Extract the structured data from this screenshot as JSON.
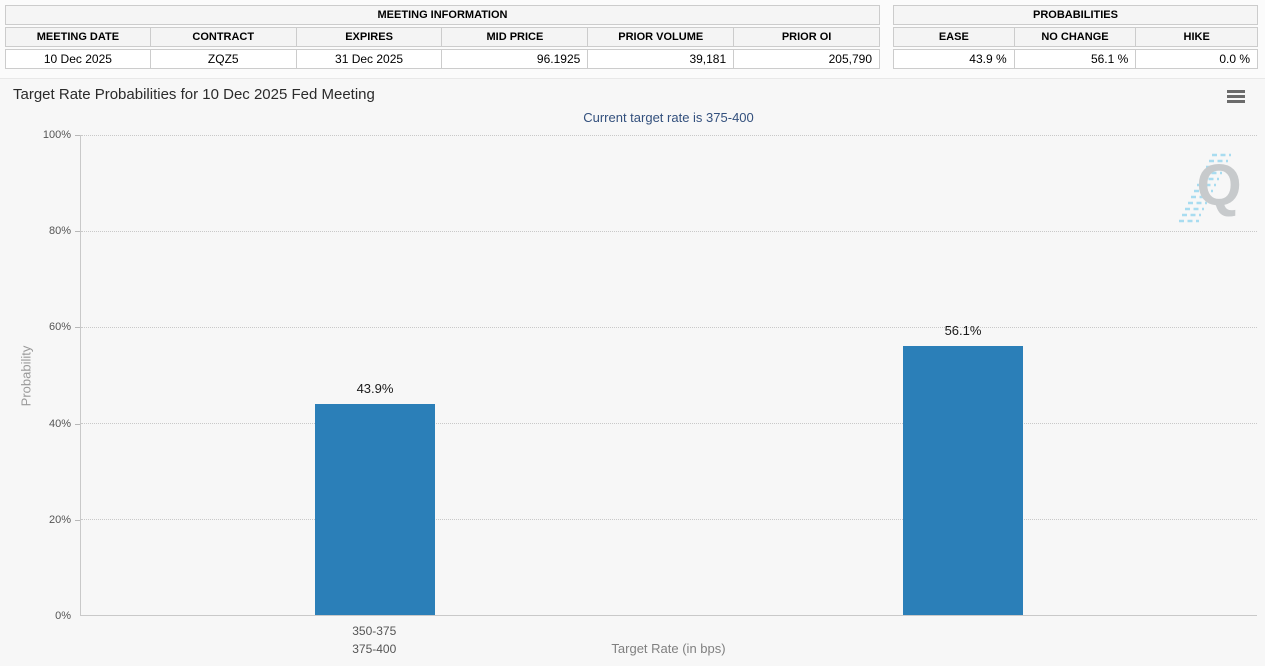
{
  "meeting_information": {
    "title": "MEETING INFORMATION",
    "columns": [
      "MEETING DATE",
      "CONTRACT",
      "EXPIRES",
      "MID PRICE",
      "PRIOR VOLUME",
      "PRIOR OI"
    ],
    "row": [
      "10 Dec 2025",
      "ZQZ5",
      "31 Dec 2025",
      "96.1925",
      "39,181",
      "205,790"
    ]
  },
  "probabilities_summary": {
    "title": "PROBABILITIES",
    "columns": [
      "EASE",
      "NO CHANGE",
      "HIKE"
    ],
    "row": [
      "43.9 %",
      "56.1 %",
      "0.0 %"
    ]
  },
  "chart": {
    "title": "Target Rate Probabilities for 10 Dec 2025 Fed Meeting",
    "subtitle": "Current target rate is 375-400",
    "watermark_letter": "Q"
  },
  "icons": {
    "menu": "hamburger-menu-icon",
    "watermark": "quikstrike-q-watermark"
  },
  "chart_data": {
    "type": "bar",
    "categories": [
      "350-375",
      "375-400"
    ],
    "values": [
      43.9,
      56.1
    ],
    "bar_labels": [
      "43.9%",
      "56.1%"
    ],
    "title": "Target Rate Probabilities for 10 Dec 2025 Fed Meeting",
    "subtitle": "Current target rate is 375-400",
    "xlabel": "Target Rate (in bps)",
    "ylabel": "Probability",
    "ylim": [
      0,
      100
    ],
    "ytick_labels": [
      "100%",
      "80%",
      "60%",
      "40%",
      "20%",
      "0%"
    ],
    "grid": "horizontal-dotted",
    "legend": "none",
    "bar_color": "#2b7fb8"
  },
  "colors": {
    "bar": "#2b7fb8",
    "subtitle_text": "#33507d",
    "panel_background": "#f7f7f7",
    "table_header_background": "#f4f4f4",
    "table_border": "#cccccc"
  }
}
